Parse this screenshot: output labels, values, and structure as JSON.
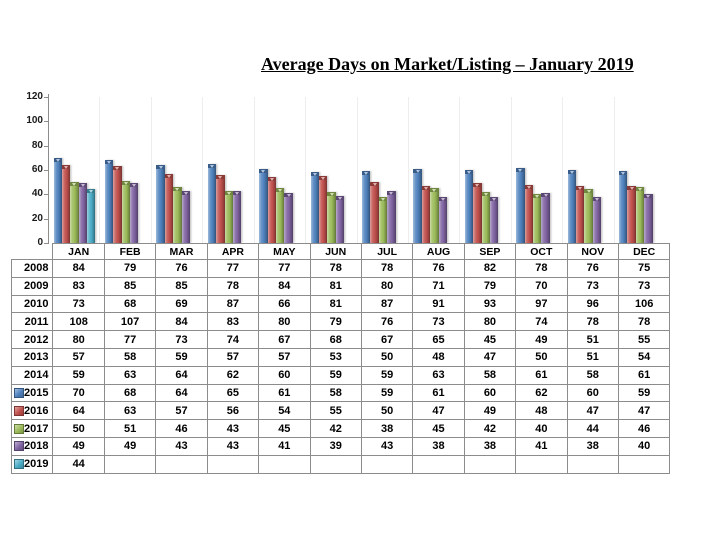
{
  "title": "Average Days on Market/Listing – January 2019",
  "chart_data": {
    "type": "bar",
    "title": "Average Days on Market/Listing – January 2019",
    "categories": [
      "JAN",
      "FEB",
      "MAR",
      "APR",
      "MAY",
      "JUN",
      "JUL",
      "AUG",
      "SEP",
      "OCT",
      "NOV",
      "DEC"
    ],
    "xlabel": "",
    "ylabel": "",
    "ylim": [
      0,
      120
    ],
    "yticks": [
      0,
      20,
      40,
      60,
      80,
      100,
      120
    ],
    "grid": false,
    "legend_position": "data-table-legend-keys",
    "series": [
      {
        "name": "2008",
        "plotted": false,
        "color": null,
        "values": [
          84,
          79,
          76,
          77,
          77,
          78,
          78,
          76,
          82,
          78,
          76,
          75
        ]
      },
      {
        "name": "2009",
        "plotted": false,
        "color": null,
        "values": [
          83,
          85,
          85,
          78,
          84,
          81,
          80,
          71,
          79,
          70,
          73,
          73
        ]
      },
      {
        "name": "2010",
        "plotted": false,
        "color": null,
        "values": [
          73,
          68,
          69,
          87,
          66,
          81,
          87,
          91,
          93,
          97,
          96,
          106
        ]
      },
      {
        "name": "2011",
        "plotted": false,
        "color": null,
        "values": [
          108,
          107,
          84,
          83,
          80,
          79,
          76,
          73,
          80,
          74,
          78,
          78
        ]
      },
      {
        "name": "2012",
        "plotted": false,
        "color": null,
        "values": [
          80,
          77,
          73,
          74,
          67,
          68,
          67,
          65,
          45,
          49,
          51,
          55
        ]
      },
      {
        "name": "2013",
        "plotted": false,
        "color": null,
        "values": [
          57,
          58,
          59,
          57,
          57,
          53,
          50,
          48,
          47,
          50,
          51,
          54
        ]
      },
      {
        "name": "2014",
        "plotted": false,
        "color": null,
        "values": [
          59,
          63,
          64,
          62,
          60,
          59,
          59,
          63,
          58,
          61,
          58,
          61
        ]
      },
      {
        "name": "2015",
        "plotted": true,
        "color": "#4F81BD",
        "values": [
          70,
          68,
          64,
          65,
          61,
          58,
          59,
          61,
          60,
          62,
          60,
          59
        ]
      },
      {
        "name": "2016",
        "plotted": true,
        "color": "#C0504D",
        "values": [
          64,
          63,
          57,
          56,
          54,
          55,
          50,
          47,
          49,
          48,
          47,
          47
        ]
      },
      {
        "name": "2017",
        "plotted": true,
        "color": "#9BBB59",
        "values": [
          50,
          51,
          46,
          43,
          45,
          42,
          38,
          45,
          42,
          40,
          44,
          46
        ]
      },
      {
        "name": "2018",
        "plotted": true,
        "color": "#8064A2",
        "values": [
          49,
          49,
          43,
          43,
          41,
          39,
          43,
          38,
          38,
          41,
          38,
          40
        ]
      },
      {
        "name": "2019",
        "plotted": true,
        "color": "#4BACC6",
        "values": [
          44,
          null,
          null,
          null,
          null,
          null,
          null,
          null,
          null,
          null,
          null,
          null
        ]
      }
    ]
  }
}
